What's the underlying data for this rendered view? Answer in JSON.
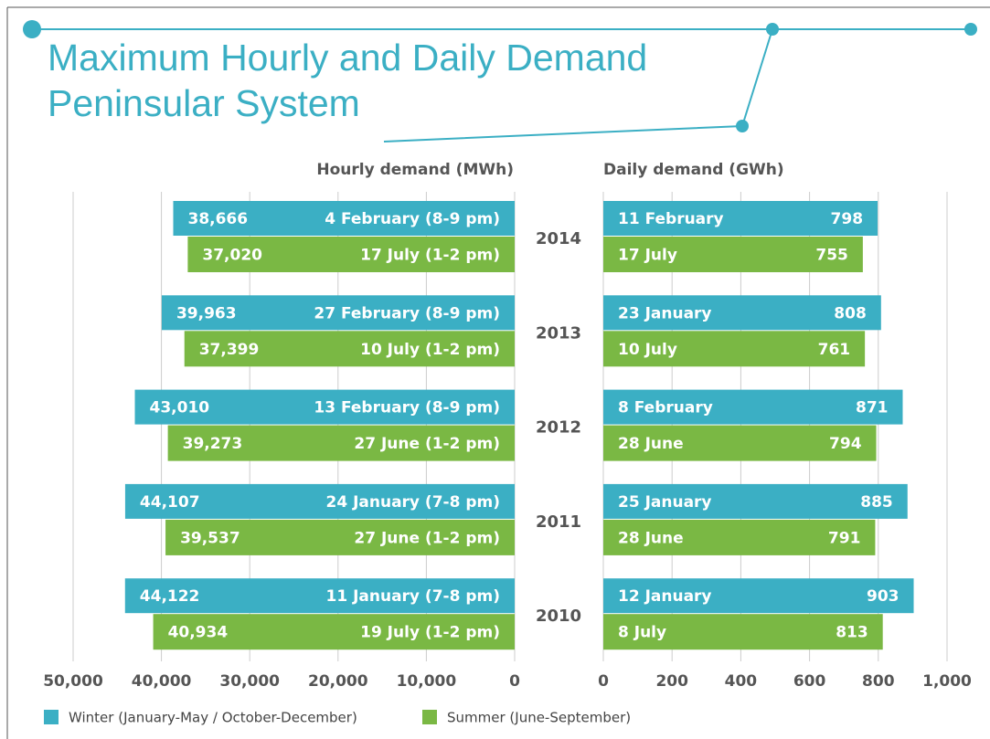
{
  "title": [
    "Maximum Hourly and Daily Demand",
    "Peninsular System"
  ],
  "chart_data": [
    {
      "type": "bar",
      "orientation": "horizontal",
      "reversed": true,
      "xlabel": "Hourly demand (MWh)",
      "categories": [
        "2014",
        "2013",
        "2012",
        "2011",
        "2010"
      ],
      "series": [
        {
          "name": "Winter (January-May / October-December)",
          "color": "#3bafc4",
          "values": [
            38666,
            39963,
            43010,
            44107,
            44122
          ],
          "value_labels": [
            "38,666",
            "39,963",
            "43,010",
            "44,107",
            "44,122"
          ],
          "labels": [
            "4 February (8-9 pm)",
            "27 February (8-9 pm)",
            "13 February (8-9 pm)",
            "24 January (7-8 pm)",
            "11 January (7-8 pm)"
          ]
        },
        {
          "name": "Summer (June-September)",
          "color": "#7ab844",
          "values": [
            37020,
            37399,
            39273,
            39537,
            40934
          ],
          "value_labels": [
            "37,020",
            "37,399",
            "39,273",
            "39,537",
            "40,934"
          ],
          "labels": [
            "17 July (1-2 pm)",
            "10 July (1-2 pm)",
            "27 June (1-2 pm)",
            "27 June (1-2 pm)",
            "19 July (1-2 pm)"
          ]
        }
      ],
      "xlim": [
        0,
        50000
      ],
      "xticks": [
        {
          "value": 50000,
          "label": "50,000"
        },
        {
          "value": 40000,
          "label": "40,000"
        },
        {
          "value": 30000,
          "label": "30,000"
        },
        {
          "value": 20000,
          "label": "20,000"
        },
        {
          "value": 10000,
          "label": "10,000"
        },
        0
      ],
      "grid": true
    },
    {
      "type": "bar",
      "orientation": "horizontal",
      "reversed": false,
      "xlabel": "Daily demand (GWh)",
      "series": [
        {
          "color": "#3bafc4",
          "values": [
            798,
            808,
            871,
            885,
            903
          ],
          "labels": [
            "11 February",
            "23 January",
            "8 February",
            "25 January",
            "12 January"
          ]
        },
        {
          "color": "#7ab844",
          "values": [
            755,
            761,
            794,
            791,
            813
          ],
          "labels": [
            "17 July",
            "10 July",
            "28 June",
            "28 June",
            "8 July"
          ]
        }
      ],
      "xlim": [
        0,
        1000
      ],
      "xticks": [
        0,
        200,
        400,
        600,
        800,
        {
          "value": 1000,
          "label": "1,000"
        }
      ],
      "grid": true
    }
  ]
}
